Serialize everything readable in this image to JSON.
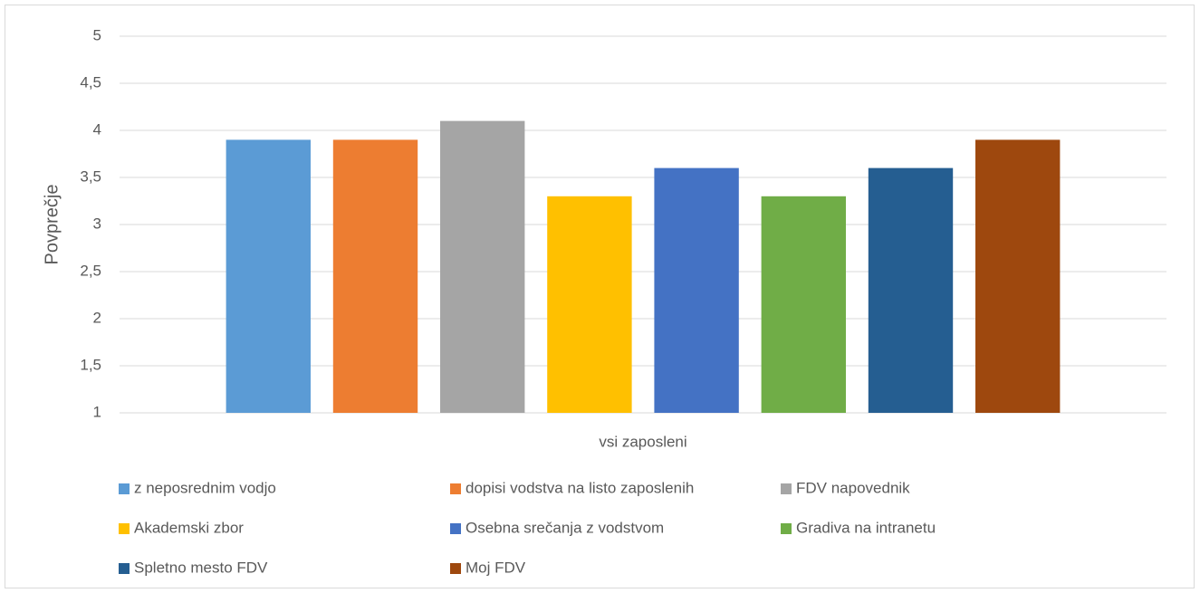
{
  "chart_data": {
    "type": "bar",
    "y_label": "Povprečje",
    "categories": [
      "vsi zaposleni"
    ],
    "series": [
      {
        "name": "z neposrednim vodjo",
        "color": "#5b9bd5",
        "values": [
          3.9
        ]
      },
      {
        "name": "dopisi vodstva na listo zaposlenih",
        "color": "#ed7d31",
        "values": [
          3.9
        ]
      },
      {
        "name": "FDV napovednik",
        "color": "#a5a5a5",
        "values": [
          4.1
        ]
      },
      {
        "name": "Akademski zbor",
        "color": "#ffc000",
        "values": [
          3.3
        ]
      },
      {
        "name": "Osebna srečanja z vodstvom",
        "color": "#4472c4",
        "values": [
          3.6
        ]
      },
      {
        "name": "Gradiva na intranetu",
        "color": "#70ad47",
        "values": [
          3.3
        ]
      },
      {
        "name": "Spletno mesto FDV",
        "color": "#255e91",
        "values": [
          3.6
        ]
      },
      {
        "name": "Moj FDV",
        "color": "#9e480e",
        "values": [
          3.9
        ]
      }
    ],
    "ylim": [
      1,
      5
    ],
    "yticks": [
      1,
      {
        "value": 1.5,
        "label": "1,5"
      },
      2,
      {
        "value": 2.5,
        "label": "2,5"
      },
      3,
      {
        "value": 3.5,
        "label": "3,5"
      },
      4,
      {
        "value": 4.5,
        "label": "4,5"
      },
      5
    ],
    "grid": true,
    "legend": "bottom"
  }
}
